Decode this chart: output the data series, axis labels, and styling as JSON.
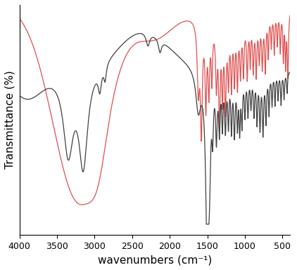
{
  "title": "",
  "xlabel": "wavenumbers (cm⁻¹)",
  "ylabel": "Transmittance (%)",
  "xlim": [
    4000,
    400
  ],
  "background_color": "#ffffff",
  "line_color_red": "#e05050",
  "line_color_black": "#404040",
  "line_width": 0.9,
  "xticks": [
    4000,
    3500,
    3000,
    2500,
    2000,
    1500,
    1000,
    500
  ],
  "xlabel_fontsize": 11,
  "ylabel_fontsize": 11
}
